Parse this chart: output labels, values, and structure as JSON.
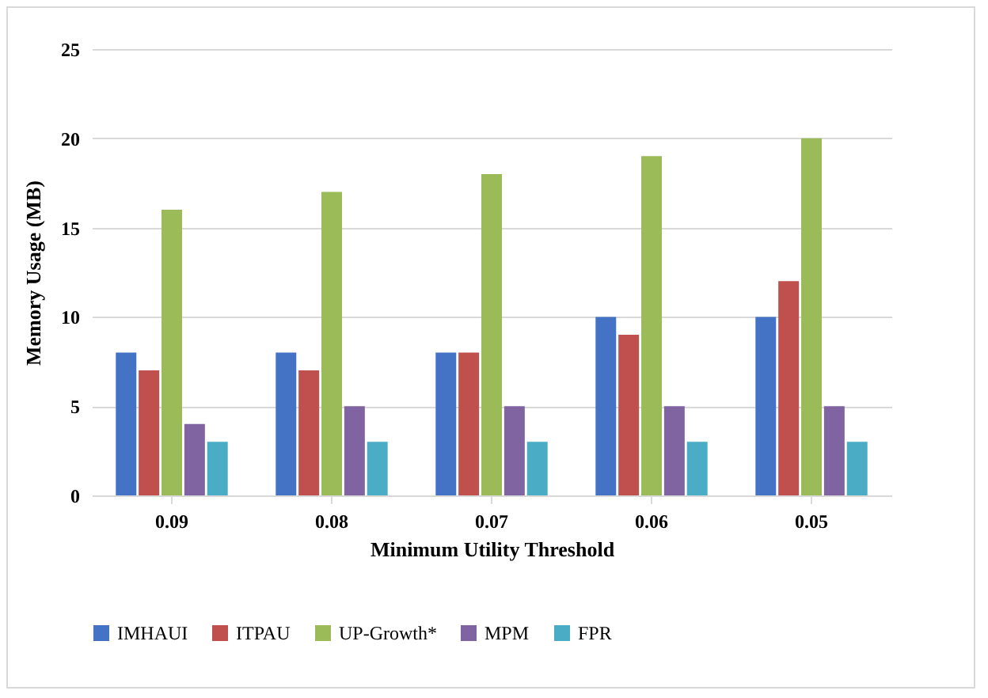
{
  "chart_data": {
    "type": "bar",
    "xlabel": "Minimum Utility Threshold",
    "ylabel": "Memory Usage (MB)",
    "categories": [
      "0.09",
      "0.08",
      "0.07",
      "0.06",
      "0.05"
    ],
    "series": [
      {
        "name": "IMHAUI",
        "color": "#4472c4",
        "values": [
          8,
          8,
          8,
          10,
          10
        ]
      },
      {
        "name": "ITPAU",
        "color": "#c0504d",
        "values": [
          7,
          7,
          8,
          9,
          12
        ]
      },
      {
        "name": "UP-Growth*",
        "color": "#9bbb59",
        "values": [
          16,
          17,
          18,
          19,
          20
        ]
      },
      {
        "name": "MPM",
        "color": "#8064a2",
        "values": [
          4,
          5,
          5,
          5,
          5
        ]
      },
      {
        "name": "FPR",
        "color": "#4bacc6",
        "values": [
          3,
          3,
          3,
          3,
          3
        ]
      }
    ],
    "ylim": [
      0,
      25
    ],
    "yticks": [
      0,
      5,
      10,
      15,
      20,
      25
    ],
    "grid": "y",
    "legend": "bottom"
  }
}
